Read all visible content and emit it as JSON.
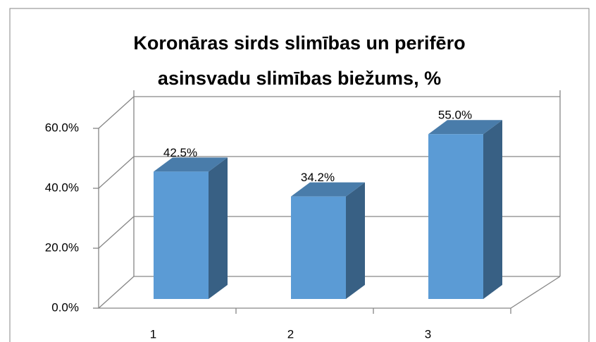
{
  "chart_data": {
    "type": "bar3d",
    "title": "Koronāras sirds slimības un perifēro asinsvadu slimības biežums, %",
    "categories": [
      "1",
      "2",
      "3"
    ],
    "values": [
      42.5,
      34.2,
      55.0
    ],
    "value_labels": [
      "42.5%",
      "34.2%",
      "55.0%"
    ],
    "color": "#5b9bd5",
    "ylim": [
      0,
      60
    ],
    "yticks": [
      {
        "value": 0,
        "label": "0.0%"
      },
      {
        "value": 20,
        "label": "20.0%"
      },
      {
        "value": 40,
        "label": "40.0%"
      },
      {
        "value": 60,
        "label": "60.0%"
      }
    ],
    "grid": true
  }
}
